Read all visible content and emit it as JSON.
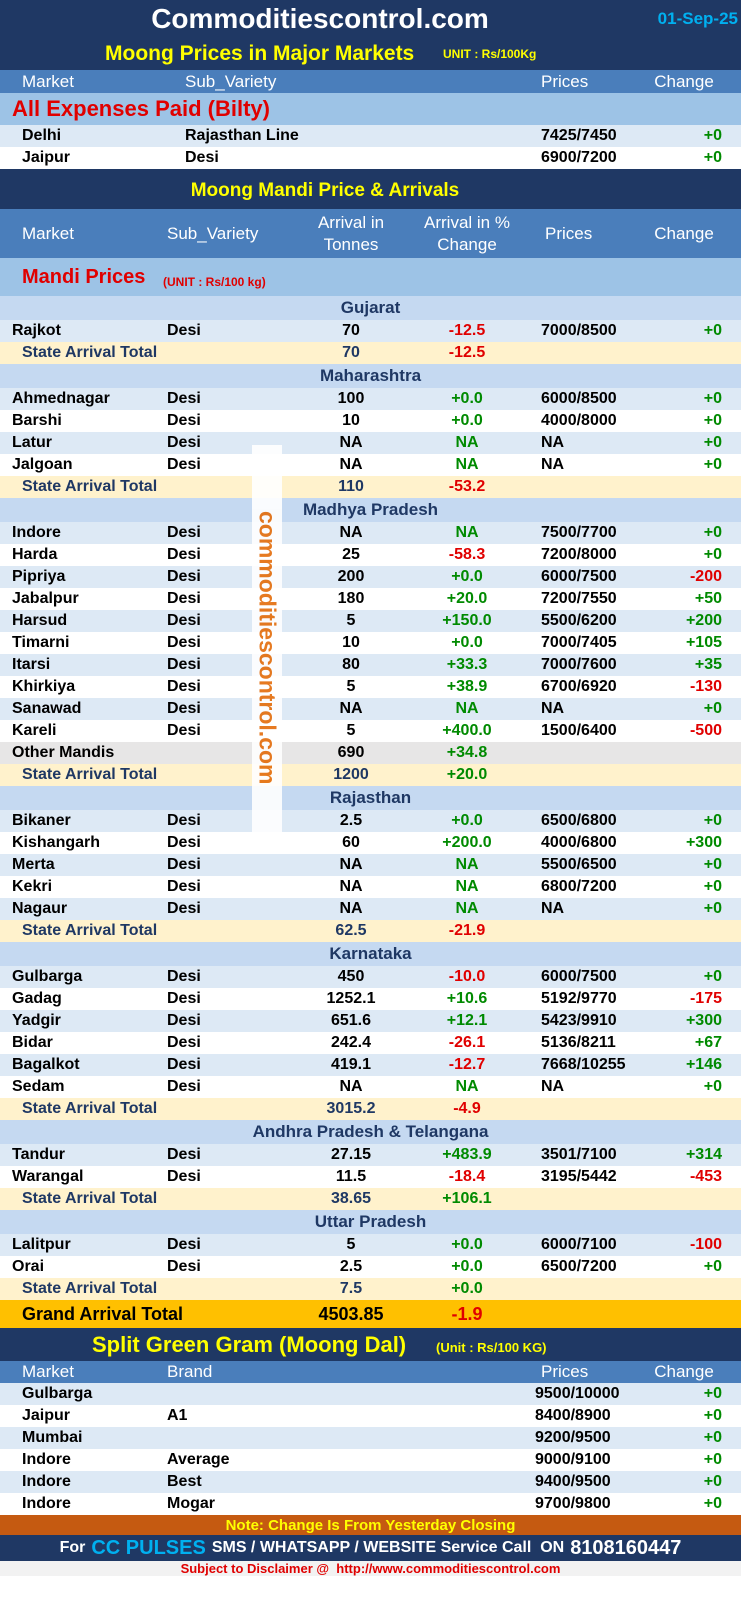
{
  "header": {
    "site": "Commoditiescontrol.com",
    "date": "01-Sep-25"
  },
  "major_markets": {
    "title": "Moong Prices in Major Markets",
    "unit": "UNIT : Rs/100Kg",
    "columns": [
      "Market",
      "Sub_Variety",
      "Prices",
      "Change"
    ],
    "group": "All Expenses Paid (Bilty)",
    "rows": [
      [
        "Delhi",
        "Rajasthan Line",
        "7425/7450",
        "+0"
      ],
      [
        "Jaipur",
        "Desi",
        "6900/7200",
        "+0"
      ]
    ]
  },
  "mandi": {
    "title": "Moong Mandi Price & Arrivals",
    "columns": [
      "Market",
      "Sub_Variety",
      "Arrival in Tonnes",
      "Arrival  in % Change",
      "Prices",
      "Change"
    ],
    "group": "Mandi Prices",
    "unit": "(UNIT : Rs/100 kg)",
    "states": [
      {
        "name": "Gujarat",
        "rows": [
          [
            "Rajkot",
            "Desi",
            "70",
            "-12.5",
            "7000/8500",
            "+0"
          ]
        ],
        "total": [
          "State Arrival Total",
          "70",
          "-12.5"
        ]
      },
      {
        "name": "Maharashtra",
        "rows": [
          [
            "Ahmednagar",
            "Desi",
            "100",
            "+0.0",
            "6000/8500",
            "+0"
          ],
          [
            "Barshi",
            "Desi",
            "10",
            "+0.0",
            "4000/8000",
            "+0"
          ],
          [
            "Latur",
            "Desi",
            "NA",
            "NA",
            "NA",
            "+0"
          ],
          [
            "Jalgoan",
            "Desi",
            "NA",
            "NA",
            "NA",
            "+0"
          ]
        ],
        "total": [
          "State Arrival Total",
          "110",
          "-53.2"
        ]
      },
      {
        "name": "Madhya Pradesh",
        "rows": [
          [
            "Indore",
            "Desi",
            "NA",
            "NA",
            "7500/7700",
            "+0"
          ],
          [
            "Harda",
            "Desi",
            "25",
            "-58.3",
            "7200/8000",
            "+0"
          ],
          [
            "Pipriya",
            "Desi",
            "200",
            "+0.0",
            "6000/7500",
            "-200"
          ],
          [
            "Jabalpur",
            "Desi",
            "180",
            "+20.0",
            "7200/7550",
            "+50"
          ],
          [
            "Harsud",
            "Desi",
            "5",
            "+150.0",
            "5500/6200",
            "+200"
          ],
          [
            "Timarni",
            "Desi",
            "10",
            "+0.0",
            "7000/7405",
            "+105"
          ],
          [
            "Itarsi",
            "Desi",
            "80",
            "+33.3",
            "7000/7600",
            "+35"
          ],
          [
            "Khirkiya",
            "Desi",
            "5",
            "+38.9",
            "6700/6920",
            "-130"
          ],
          [
            "Sanawad",
            "Desi",
            "NA",
            "NA",
            "NA",
            "+0"
          ],
          [
            "Kareli",
            "Desi",
            "5",
            "+400.0",
            "1500/6400",
            "-500"
          ],
          [
            "Other Mandis",
            null,
            "690",
            "+34.8",
            null,
            null
          ]
        ],
        "total": [
          "State Arrival Total",
          "1200",
          "+20.0"
        ]
      },
      {
        "name": "Rajasthan",
        "rows": [
          [
            "Bikaner",
            "Desi",
            "2.5",
            "+0.0",
            "6500/6800",
            "+0"
          ],
          [
            "Kishangarh",
            "Desi",
            "60",
            "+200.0",
            "4000/6800",
            "+300"
          ],
          [
            "Merta",
            "Desi",
            "NA",
            "NA",
            "5500/6500",
            "+0"
          ],
          [
            "Kekri",
            "Desi",
            "NA",
            "NA",
            "6800/7200",
            "+0"
          ],
          [
            "Nagaur",
            "Desi",
            "NA",
            "NA",
            "NA",
            "+0"
          ]
        ],
        "total": [
          "State Arrival Total",
          "62.5",
          "-21.9"
        ]
      },
      {
        "name": "Karnataka",
        "rows": [
          [
            "Gulbarga",
            "Desi",
            "450",
            "-10.0",
            "6000/7500",
            "+0"
          ],
          [
            "Gadag",
            "Desi",
            "1252.1",
            "+10.6",
            "5192/9770",
            "-175"
          ],
          [
            "Yadgir",
            "Desi",
            "651.6",
            "+12.1",
            "5423/9910",
            "+300"
          ],
          [
            "Bidar",
            "Desi",
            "242.4",
            "-26.1",
            "5136/8211",
            "+67"
          ],
          [
            "Bagalkot",
            "Desi",
            "419.1",
            "-12.7",
            "7668/10255",
            "+146"
          ],
          [
            "Sedam",
            "Desi",
            "NA",
            "NA",
            "NA",
            "+0"
          ]
        ],
        "total": [
          "State Arrival Total",
          "3015.2",
          "-4.9"
        ]
      },
      {
        "name": "Andhra Pradesh & Telangana",
        "rows": [
          [
            "Tandur",
            "Desi",
            "27.15",
            "+483.9",
            "3501/7100",
            "+314"
          ],
          [
            "Warangal",
            "Desi",
            "11.5",
            "-18.4",
            "3195/5442",
            "-453"
          ]
        ],
        "total": [
          "State Arrival Total",
          "38.65",
          "+106.1"
        ]
      },
      {
        "name": "Uttar Pradesh",
        "rows": [
          [
            "Lalitpur",
            "Desi",
            "5",
            "+0.0",
            "6000/7100",
            "-100"
          ],
          [
            "Orai",
            "Desi",
            "2.5",
            "+0.0",
            "6500/7200",
            "+0"
          ]
        ],
        "total": [
          "State Arrival Total",
          "7.5",
          "+0.0"
        ]
      }
    ],
    "grand_total": [
      "Grand Arrival Total",
      "4503.85",
      "-1.9"
    ]
  },
  "dal": {
    "title": "Split Green Gram (Moong Dal)",
    "unit": "(Unit : Rs/100 KG)",
    "columns": [
      "Market",
      "Brand",
      "Prices",
      "Change"
    ],
    "rows": [
      [
        "Gulbarga",
        null,
        "9500/10000",
        "+0"
      ],
      [
        "Jaipur",
        "A1",
        "8400/8900",
        "+0"
      ],
      [
        "Mumbai",
        null,
        "9200/9500",
        "+0"
      ],
      [
        "Indore",
        "Average",
        "9000/9100",
        "+0"
      ],
      [
        "Indore",
        "Best",
        "9400/9500",
        "+0"
      ],
      [
        "Indore",
        "Mogar",
        "9700/9800",
        "+0"
      ]
    ]
  },
  "note": "Note: Change Is From Yesterday Closing",
  "footer": {
    "prefix": "For",
    "brand": "CC PULSES",
    "text": "SMS / WHATSAPP / WEBSITE Service Call  ON",
    "phone": "8108160447"
  },
  "disclaimer": "Subject to Disclaimer @  http://www.commoditiescontrol.com",
  "watermark": "commoditiescontrol.com"
}
